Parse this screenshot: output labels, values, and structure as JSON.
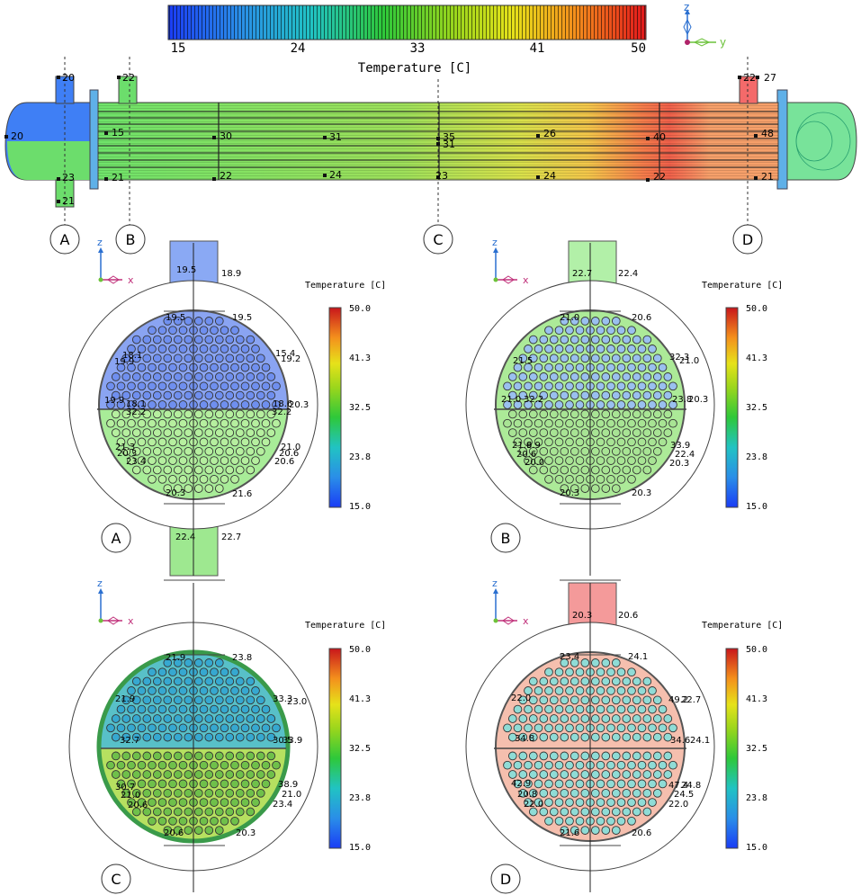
{
  "top_colorbar": {
    "ticks": [
      "15",
      "24",
      "33",
      "41",
      "50"
    ],
    "title": "Temperature [C]",
    "range": [
      15,
      50
    ]
  },
  "triad_top": {
    "z": "z",
    "y": "y"
  },
  "shell_probes": {
    "top": [
      "20",
      "22",
      "22",
      "27"
    ],
    "upper": [
      "20",
      "15",
      "30",
      "31",
      "35",
      "31",
      "26",
      "40",
      "48"
    ],
    "lower": [
      "23",
      "21",
      "21",
      "22",
      "24",
      "23",
      "24",
      "22",
      "21"
    ]
  },
  "section_markers": [
    "A",
    "B",
    "C",
    "D"
  ],
  "panels": [
    {
      "id": "A",
      "triad": {
        "z": "z",
        "x": "x"
      },
      "colorbar": {
        "title": "Temperature [C]",
        "ticks": [
          "50.0",
          "41.3",
          "32.5",
          "23.8",
          "15.0"
        ]
      },
      "labels": [
        "19.5",
        "18.9",
        "19.5",
        "19.5",
        "18.1",
        "19.9",
        "15.4",
        "19.2",
        "19.9",
        "18.1",
        "32.2",
        "18.6",
        "20.3",
        "32.2",
        "21.3",
        "20.3",
        "23.4",
        "21.0",
        "20.6",
        "20.6",
        "20.3",
        "21.6",
        "22.4",
        "22.7"
      ]
    },
    {
      "id": "B",
      "triad": {
        "z": "z",
        "x": "x"
      },
      "colorbar": {
        "title": "Temperature [C]",
        "ticks": [
          "50.0",
          "41.3",
          "32.5",
          "23.8",
          "15.0"
        ]
      },
      "labels": [
        "22.7",
        "22.4",
        "21.0",
        "20.6",
        "21.5",
        "32.3",
        "21.0",
        "21.0",
        "32.2",
        "23.8",
        "20.3",
        "21.6",
        "9.9",
        "20.6",
        "20.0",
        "33.9",
        "22.4",
        "20.3",
        "20.3",
        "20.3"
      ]
    },
    {
      "id": "C",
      "triad": {
        "z": "z",
        "x": "x"
      },
      "colorbar": {
        "title": "Temperature [C]",
        "ticks": [
          "50.0",
          "41.3",
          "32.5",
          "23.8",
          "15.0"
        ]
      },
      "labels": [
        "21.9",
        "23.8",
        "21.9",
        "33.3",
        "23.0",
        "32.7",
        "30.5",
        "33.9",
        "30.7",
        "21.0",
        "20.6",
        "38.9",
        "21.0",
        "23.4",
        "20.6",
        "20.3"
      ]
    },
    {
      "id": "D",
      "triad": {
        "z": "z",
        "x": "x"
      },
      "colorbar": {
        "title": "Temperature [C]",
        "ticks": [
          "50.0",
          "41.3",
          "32.5",
          "23.8",
          "15.0"
        ]
      },
      "labels": [
        "20.3",
        "20.6",
        "23.4",
        "24.1",
        "22.0",
        "49.2",
        "22.7",
        "34.8",
        "34.6",
        "24.1",
        "42.9",
        "47.4",
        "24.8",
        "20.8",
        "24.5",
        "22.0",
        "22.0",
        "21.6",
        "20.6"
      ]
    }
  ]
}
